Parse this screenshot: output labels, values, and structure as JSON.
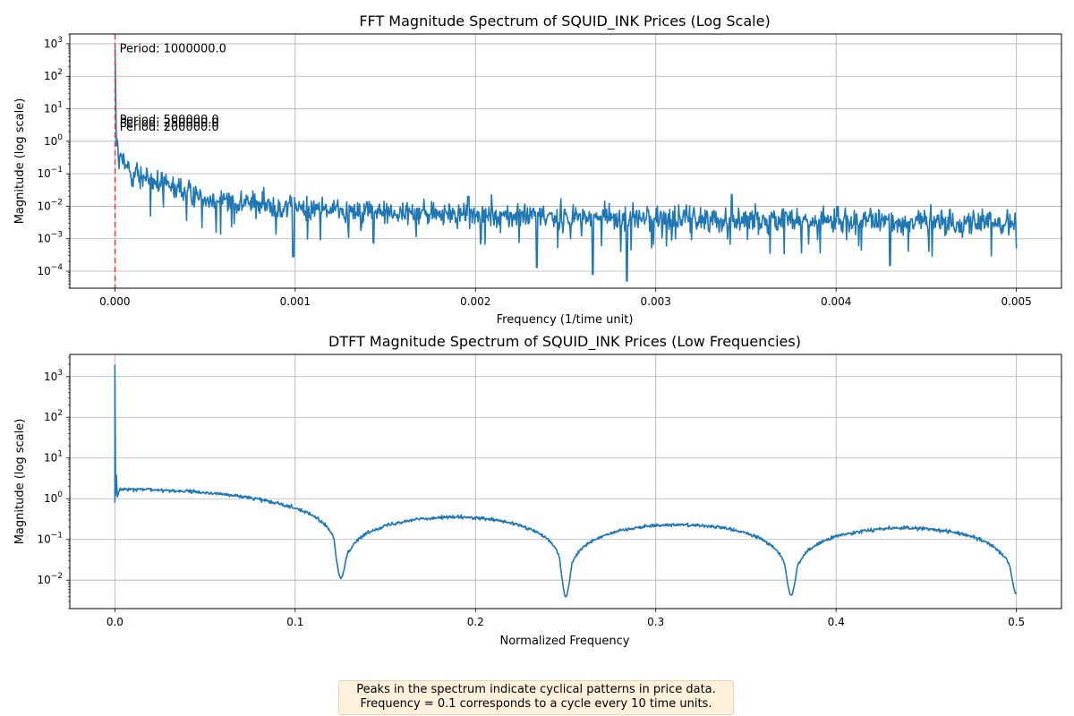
{
  "chart_data": [
    {
      "type": "line",
      "title": "FFT Magnitude Spectrum of SQUID_INK Prices (Log Scale)",
      "xlabel": "Frequency (1/time unit)",
      "ylabel": "Magnitude (log scale)",
      "xlim": [
        -0.00025,
        0.00525
      ],
      "ylim": [
        3e-05,
        2000
      ],
      "yscale": "log",
      "grid": true,
      "xticks": [
        0.0,
        0.001,
        0.002,
        0.003,
        0.004,
        0.005
      ],
      "xtick_labels": [
        "0.000",
        "0.001",
        "0.002",
        "0.003",
        "0.004",
        "0.005"
      ],
      "yticks": [
        0.0001,
        0.001,
        0.01,
        0.1,
        1,
        10,
        100,
        1000
      ],
      "ytick_labels": [
        {
          "base": "10",
          "exp": "−4"
        },
        {
          "base": "10",
          "exp": "−3"
        },
        {
          "base": "10",
          "exp": "−2"
        },
        {
          "base": "10",
          "exp": "−1"
        },
        {
          "base": "10",
          "exp": "0"
        },
        {
          "base": "10",
          "exp": "1"
        },
        {
          "base": "10",
          "exp": "2"
        },
        {
          "base": "10",
          "exp": "3"
        }
      ],
      "series_color": "#1f77b4",
      "vline": {
        "x": 1e-06,
        "color": "#e8413a",
        "style": "dashed"
      },
      "annotations": [
        {
          "text": "Period: 1000000.0",
          "x": 2.6e-05,
          "y": 700
        },
        {
          "text": "Period: 500000.0",
          "x": 2.6e-05,
          "y": 4.6
        },
        {
          "text": "Period: 250000.0",
          "x": 2.6e-05,
          "y": 3.6
        },
        {
          "text": "Period: 200000.0",
          "x": 2.6e-05,
          "y": 2.7
        }
      ],
      "envelope": [
        {
          "x": 1e-06,
          "y": 700
        },
        {
          "x": 5e-06,
          "y": 2.0
        },
        {
          "x": 2e-05,
          "y": 0.3
        },
        {
          "x": 0.0001,
          "y": 0.12
        },
        {
          "x": 0.0002,
          "y": 0.06
        },
        {
          "x": 0.0005,
          "y": 0.02
        },
        {
          "x": 0.001,
          "y": 0.009
        },
        {
          "x": 0.002,
          "y": 0.0055
        },
        {
          "x": 0.003,
          "y": 0.0045
        },
        {
          "x": 0.004,
          "y": 0.0038
        },
        {
          "x": 0.005,
          "y": 0.0032
        }
      ],
      "dips": [
        {
          "x": 0.00099,
          "y": 0.00028
        },
        {
          "x": 0.00234,
          "y": 0.00013
        },
        {
          "x": 0.00265,
          "y": 8e-05
        },
        {
          "x": 0.00284,
          "y": 5e-05
        },
        {
          "x": 0.0043,
          "y": 0.00015
        }
      ],
      "spikes": [
        {
          "x": 0.00026,
          "y": 0.11
        },
        {
          "x": 0.00196,
          "y": 0.02
        },
        {
          "x": 0.00342,
          "y": 0.023
        }
      ]
    },
    {
      "type": "line",
      "title": "DTFT Magnitude Spectrum of SQUID_INK Prices (Low Frequencies)",
      "xlabel": "Normalized Frequency",
      "ylabel": "Magnitude (log scale)",
      "xlim": [
        -0.025,
        0.525
      ],
      "ylim": [
        0.002,
        3500
      ],
      "yscale": "log",
      "grid": true,
      "xticks": [
        0.0,
        0.1,
        0.2,
        0.3,
        0.4,
        0.5
      ],
      "xtick_labels": [
        "0.0",
        "0.1",
        "0.2",
        "0.3",
        "0.4",
        "0.5"
      ],
      "yticks": [
        0.01,
        0.1,
        1,
        10,
        100,
        1000
      ],
      "ytick_labels": [
        {
          "base": "10",
          "exp": "−2"
        },
        {
          "base": "10",
          "exp": "−1"
        },
        {
          "base": "10",
          "exp": "0"
        },
        {
          "base": "10",
          "exp": "1"
        },
        {
          "base": "10",
          "exp": "2"
        },
        {
          "base": "10",
          "exp": "3"
        }
      ],
      "series_color": "#1f77b4",
      "peak": {
        "x": 0.0,
        "y": 1900
      },
      "lobe_notches": [
        0.125,
        0.25,
        0.375,
        0.5
      ],
      "lobe_peaks": [
        {
          "x": 0.005,
          "y": 1.7
        },
        {
          "x": 0.18,
          "y": 0.35
        },
        {
          "x": 0.31,
          "y": 0.23
        },
        {
          "x": 0.44,
          "y": 0.19
        }
      ],
      "notch_minima": [
        {
          "x": 0.125,
          "y": 0.012
        },
        {
          "x": 0.25,
          "y": 0.004
        },
        {
          "x": 0.375,
          "y": 0.0045
        },
        {
          "x": 0.5,
          "y": 0.005
        }
      ]
    }
  ],
  "note": {
    "line1": "Peaks in the spectrum indicate cyclical patterns in price data.",
    "line2": "Frequency = 0.1 corresponds to a cycle every 10 time units."
  }
}
